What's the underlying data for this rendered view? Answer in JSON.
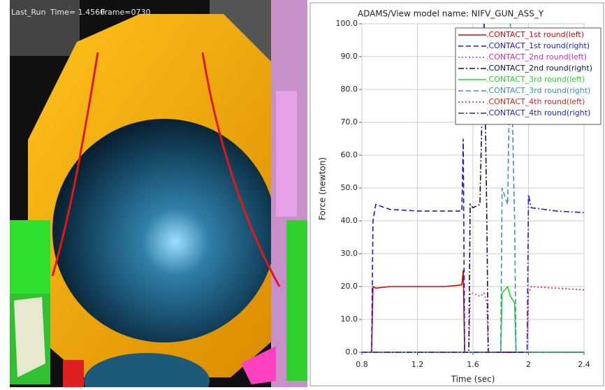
{
  "viewport": {
    "run": "Last_Run",
    "time": "Time= 1.4560",
    "frame": "Frame=0730"
  },
  "chart_data": {
    "type": "line",
    "title": "ADAMS/View model name: NIFV_GUN_ASS_Y",
    "x_label": "Time (sec)",
    "y_label": "Force (newton)",
    "x": [
      0.8,
      0.87,
      0.88,
      0.9,
      1.0,
      1.2,
      1.4,
      1.52,
      1.53,
      1.54,
      1.57,
      1.58,
      1.6,
      1.65,
      1.68,
      1.7,
      1.71,
      1.8,
      1.81,
      1.85,
      1.87,
      1.9,
      1.91,
      1.99,
      2.0,
      2.02,
      2.2,
      2.4
    ],
    "series": [
      {
        "name": ".CONTACT_1st round(left)",
        "color": "#e00000",
        "style": "solid",
        "values": [
          0,
          0,
          20,
          19.5,
          20,
          20,
          20,
          20.5,
          25,
          0,
          0,
          0,
          0,
          0,
          0,
          0,
          0,
          0,
          0,
          0,
          0,
          0,
          0,
          0,
          0,
          0,
          0,
          0
        ]
      },
      {
        "name": ".CONTACT_1st round(right)",
        "color": "#1818e0",
        "style": "dashed",
        "values": [
          0,
          0,
          40,
          45,
          43.5,
          43,
          43,
          43,
          65,
          0,
          0,
          0,
          0,
          0,
          0,
          0,
          0,
          0,
          0,
          0,
          0,
          0,
          0,
          0,
          0,
          0,
          0,
          0
        ]
      },
      {
        "name": ".CONTACT_2nd round(left)",
        "color": "#e020d0",
        "style": "dotted",
        "values": [
          0,
          0,
          0,
          0,
          0,
          0,
          0,
          0,
          0,
          0,
          0,
          18,
          18,
          17,
          18,
          15,
          0,
          0,
          0,
          0,
          0,
          0,
          0,
          0,
          0,
          0,
          0,
          0
        ]
      },
      {
        "name": ".CONTACT_2nd round(right)",
        "color": "#101048",
        "style": "dashdot",
        "values": [
          0,
          0,
          0,
          0,
          0,
          0,
          0,
          0,
          0,
          0,
          0,
          45,
          44,
          45,
          100,
          40,
          0,
          0,
          0,
          0,
          0,
          0,
          0,
          0,
          0,
          0,
          0,
          0
        ]
      },
      {
        "name": ".CONTACT_3rd round(left)",
        "color": "#20d820",
        "style": "solid",
        "values": [
          0,
          0,
          0,
          0,
          0,
          0,
          0,
          0,
          0,
          0,
          0,
          0,
          0,
          0,
          0,
          0,
          0,
          0,
          18,
          20,
          17,
          15,
          0,
          0,
          0,
          0,
          0,
          0
        ]
      },
      {
        "name": ".CONTACT_3rd round(right)",
        "color": "#3a8fc0",
        "style": "dashed",
        "values": [
          0,
          0,
          0,
          0,
          0,
          0,
          0,
          0,
          0,
          0,
          0,
          0,
          0,
          0,
          0,
          0,
          0,
          0,
          50,
          45,
          100,
          40,
          0,
          0,
          0,
          0,
          0,
          0
        ]
      },
      {
        "name": ".CONTACT_4th round(left)",
        "color": "#e02020",
        "style": "dotted",
        "values": [
          0,
          0,
          0,
          0,
          0,
          0,
          0,
          0,
          0,
          0,
          0,
          0,
          0,
          0,
          0,
          0,
          0,
          0,
          0,
          0,
          0,
          0,
          0,
          0,
          18,
          20,
          19.5,
          19
        ]
      },
      {
        "name": ".CONTACT_4th round(right)",
        "color": "#2020d0",
        "style": "dashdot",
        "values": [
          0,
          0,
          0,
          0,
          0,
          0,
          0,
          0,
          0,
          0,
          0,
          0,
          0,
          0,
          0,
          0,
          0,
          0,
          0,
          0,
          0,
          0,
          0,
          0,
          48,
          44,
          43,
          42.5
        ]
      }
    ],
    "xlim": [
      0.8,
      2.4
    ],
    "xticks": [
      0.8,
      1.2,
      1.6,
      2.0,
      2.4
    ],
    "ylim": [
      0,
      100
    ],
    "yticks": [
      {
        "value": 0,
        "label": "0.0"
      },
      {
        "value": 10,
        "label": "10.0"
      },
      {
        "value": 20,
        "label": "20.0"
      },
      {
        "value": 30,
        "label": "30.0"
      },
      {
        "value": 40,
        "label": "40.0"
      },
      {
        "value": 50,
        "label": "50.0"
      },
      {
        "value": 60,
        "label": "60.0"
      },
      {
        "value": 70,
        "label": "70.0"
      },
      {
        "value": 80,
        "label": "80.0"
      },
      {
        "value": 90,
        "label": "90.0"
      },
      {
        "value": 100,
        "label": "100.0"
      }
    ],
    "grid": true,
    "legend": "top-right"
  }
}
